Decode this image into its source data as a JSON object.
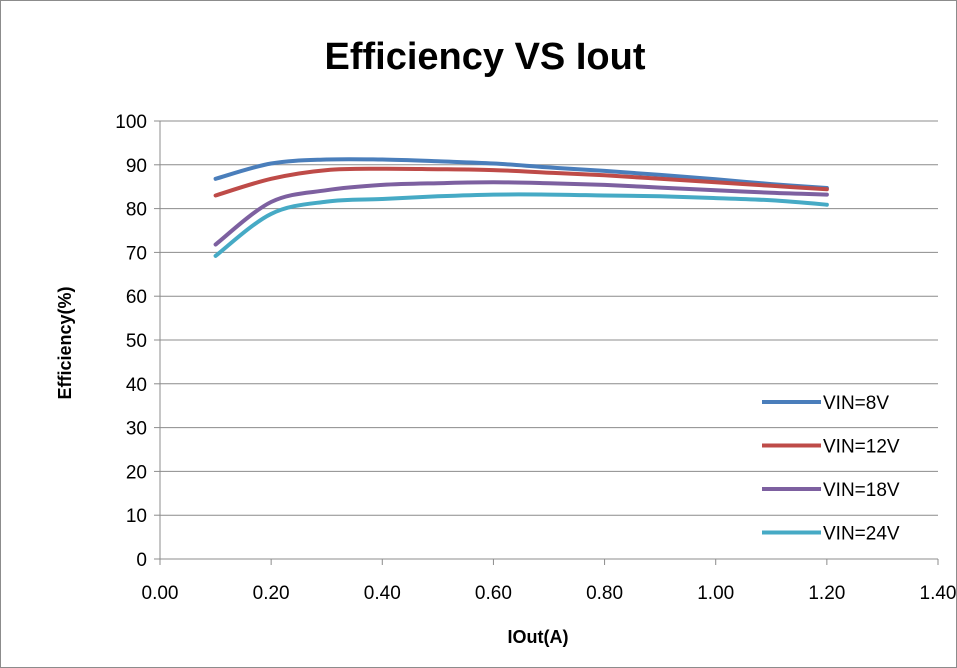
{
  "chart_data": {
    "type": "line",
    "title": "Efficiency  VS  Iout",
    "xlabel": "IOut(A)",
    "ylabel": "Efficiency(%)",
    "xlim": [
      0,
      1.4
    ],
    "ylim": [
      0,
      100
    ],
    "xticks": [
      "0.00",
      "0.20",
      "0.40",
      "0.60",
      "0.80",
      "1.00",
      "1.20",
      "1.40"
    ],
    "yticks": [
      "0",
      "10",
      "20",
      "30",
      "40",
      "50",
      "60",
      "70",
      "80",
      "90",
      "100"
    ],
    "grid": "horizontal",
    "legend_position": "bottom-right",
    "series": [
      {
        "name": "VIN=8V",
        "color": "#4a7ebb",
        "x": [
          0.1,
          0.2,
          0.3,
          0.4,
          0.5,
          0.6,
          0.7,
          0.8,
          0.9,
          1.0,
          1.1,
          1.2
        ],
        "y": [
          86.8,
          90.3,
          91.2,
          91.2,
          90.8,
          90.3,
          89.4,
          88.6,
          87.7,
          86.7,
          85.6,
          84.7
        ]
      },
      {
        "name": "VIN=12V",
        "color": "#be4b48",
        "x": [
          0.1,
          0.2,
          0.3,
          0.4,
          0.5,
          0.6,
          0.7,
          0.8,
          0.9,
          1.0,
          1.1,
          1.2
        ],
        "y": [
          83.0,
          86.8,
          88.8,
          89.1,
          89.0,
          88.8,
          88.2,
          87.6,
          86.8,
          86.0,
          85.2,
          84.4
        ]
      },
      {
        "name": "VIN=18V",
        "color": "#7d60a0",
        "x": [
          0.1,
          0.2,
          0.3,
          0.4,
          0.5,
          0.6,
          0.7,
          0.8,
          0.9,
          1.0,
          1.1,
          1.2
        ],
        "y": [
          71.8,
          81.5,
          84.2,
          85.4,
          85.8,
          86.0,
          85.8,
          85.4,
          84.8,
          84.2,
          83.6,
          83.2
        ]
      },
      {
        "name": "VIN=24V",
        "color": "#46aac5",
        "x": [
          0.1,
          0.2,
          0.3,
          0.4,
          0.5,
          0.6,
          0.7,
          0.8,
          0.9,
          1.0,
          1.1,
          1.2
        ],
        "y": [
          69.2,
          78.8,
          81.6,
          82.2,
          82.8,
          83.2,
          83.2,
          83.0,
          82.8,
          82.4,
          81.9,
          80.9
        ]
      }
    ]
  }
}
